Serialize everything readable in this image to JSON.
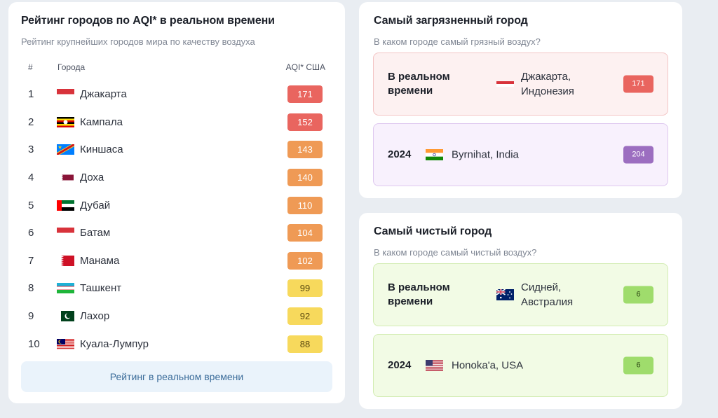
{
  "ranking": {
    "title": "Рейтинг городов по AQI* в реальном времени",
    "subtitle": "Рейтинг крупнейших городов мира по качеству воздуха",
    "col_num": "#",
    "col_city": "Города",
    "col_aqi": "AQI* США",
    "rows": [
      {
        "rank": "1",
        "city": "Джакарта",
        "aqi": "171",
        "flag": "indonesia-flag",
        "color": "#e9655f"
      },
      {
        "rank": "2",
        "city": "Кампала",
        "aqi": "152",
        "flag": "uganda-flag",
        "color": "#e9655f"
      },
      {
        "rank": "3",
        "city": "Киншаса",
        "aqi": "143",
        "flag": "drc-flag",
        "color": "#ef9a55"
      },
      {
        "rank": "4",
        "city": "Доха",
        "aqi": "140",
        "flag": "qatar-flag",
        "color": "#ef9a55"
      },
      {
        "rank": "5",
        "city": "Дубай",
        "aqi": "110",
        "flag": "uae-flag",
        "color": "#ef9a55"
      },
      {
        "rank": "6",
        "city": "Батам",
        "aqi": "104",
        "flag": "indonesia-flag",
        "color": "#ef9a55"
      },
      {
        "rank": "7",
        "city": "Манама",
        "aqi": "102",
        "flag": "bahrain-flag",
        "color": "#ef9a55"
      },
      {
        "rank": "8",
        "city": "Ташкент",
        "aqi": "99",
        "flag": "uzbekistan-flag",
        "color": "#f7d95c"
      },
      {
        "rank": "9",
        "city": "Лахор",
        "aqi": "92",
        "flag": "pakistan-flag",
        "color": "#f7d95c"
      },
      {
        "rank": "10",
        "city": "Куала-Лумпур",
        "aqi": "88",
        "flag": "malaysia-flag",
        "color": "#f7d95c"
      }
    ],
    "button_label": "Рейтинг в реальном времени"
  },
  "polluted": {
    "title": "Самый загрязненный город",
    "subtitle": "В каком городе самый грязный воздух?",
    "realtime": {
      "label": "В реальном времени",
      "place_line1": "Джакарта,",
      "place_line2": "Индонезия",
      "aqi": "171",
      "flag": "indonesia-flag",
      "color": "#e9655f"
    },
    "year": {
      "label": "2024",
      "place": "Byrnihat, India",
      "aqi": "204",
      "flag": "india-flag",
      "color": "#9c6ec0"
    }
  },
  "clean": {
    "title": "Самый чистый город",
    "subtitle": "В каком городе самый чистый воздух?",
    "realtime": {
      "label": "В реальном времени",
      "place_line1": "Сидней,",
      "place_line2": "Австралия",
      "aqi": "6",
      "flag": "australia-flag",
      "color": "#9fdc6c"
    },
    "year": {
      "label": "2024",
      "place": "Honoka'a, USA",
      "aqi": "6",
      "flag": "usa-flag",
      "color": "#9fdc6c"
    }
  }
}
